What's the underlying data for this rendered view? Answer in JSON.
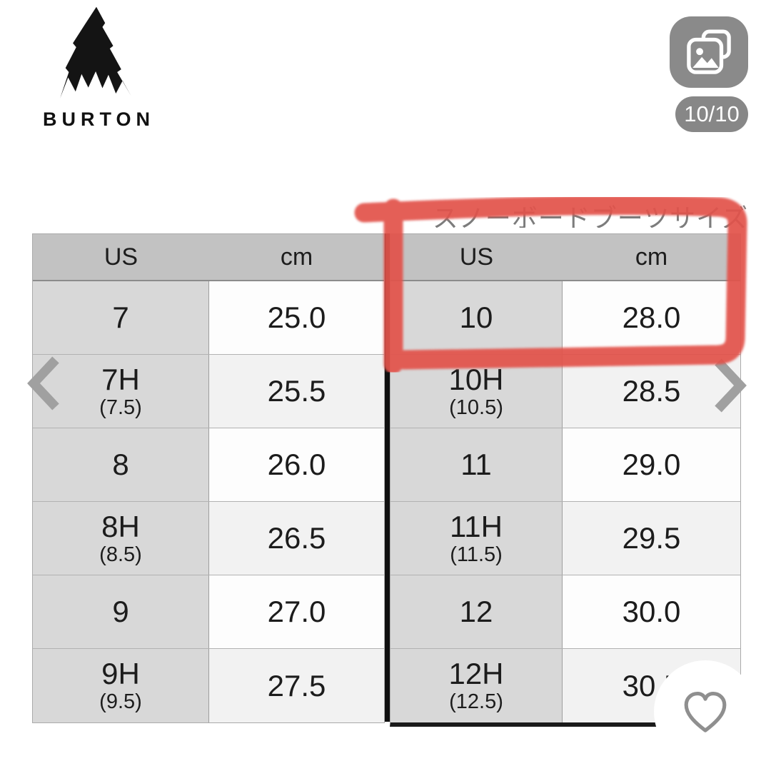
{
  "brand": {
    "name": "BURTON"
  },
  "photo_viewer": {
    "count_badge": "10/10"
  },
  "caption": "スノーボードブーツサイズ",
  "size_chart": {
    "tables": [
      {
        "side": "left",
        "headers": [
          "US",
          "cm"
        ],
        "rows": [
          {
            "us": "7",
            "us_sub": "",
            "cm": "25.0"
          },
          {
            "us": "7H",
            "us_sub": "(7.5)",
            "cm": "25.5"
          },
          {
            "us": "8",
            "us_sub": "",
            "cm": "26.0"
          },
          {
            "us": "8H",
            "us_sub": "(8.5)",
            "cm": "26.5"
          },
          {
            "us": "9",
            "us_sub": "",
            "cm": "27.0"
          },
          {
            "us": "9H",
            "us_sub": "(9.5)",
            "cm": "27.5"
          }
        ]
      },
      {
        "side": "right",
        "headers": [
          "US",
          "cm"
        ],
        "rows": [
          {
            "us": "10",
            "us_sub": "",
            "cm": "28.0"
          },
          {
            "us": "10H",
            "us_sub": "(10.5)",
            "cm": "28.5"
          },
          {
            "us": "11",
            "us_sub": "",
            "cm": "29.0"
          },
          {
            "us": "11H",
            "us_sub": "(11.5)",
            "cm": "29.5"
          },
          {
            "us": "12",
            "us_sub": "",
            "cm": "30.0"
          },
          {
            "us": "12H",
            "us_sub": "(12.5)",
            "cm": "30.5"
          }
        ]
      }
    ],
    "highlighted_row": {
      "us": "10",
      "cm": "28.0"
    }
  },
  "icons": {
    "logo": "burton-mountain-logo",
    "photos": "photo-stack-icon",
    "prev": "chevron-left-icon",
    "next": "chevron-right-icon",
    "favorite": "heart-icon"
  },
  "colors": {
    "marker_red": "#e2524c",
    "table_header_bg": "#c2c2c2",
    "us_column_bg": "#d8d8d8",
    "cm_row_bg": "#fdfdfd",
    "cm_row_alt_bg": "#f2f2f2",
    "divider_black": "#101010",
    "icon_gray": "#8a8a8a",
    "chevron_gray": "#a0a0a0",
    "heart_gray": "#8f8f8f",
    "text_dark": "#1c1c1c",
    "caption_gray": "#7c7c7c"
  }
}
